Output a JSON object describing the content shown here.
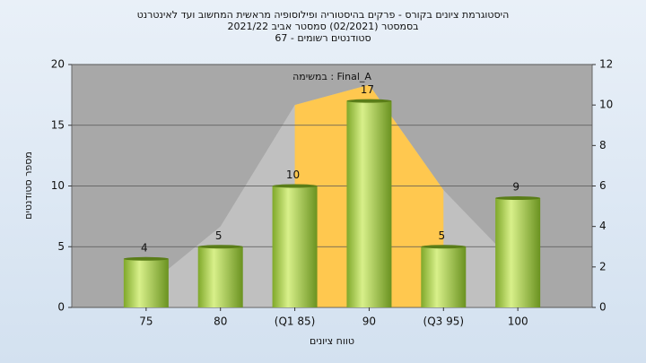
{
  "chart_data": {
    "type": "bar",
    "title": [
      "היסטוגרמת ציונים בקורס - פרקים בהיסטוריה ופילוסופיה מראשית המחשוב ועד לאינטרנט",
      "בסמסטר  (02/2021)  סמסטר אביב 2021/22",
      "סטודנטים רשומים - 67"
    ],
    "annotation": "Final_A : במשימה",
    "y_label": "מספר סטודנטים",
    "x_label": "טווח ציונים",
    "categories": [
      "75",
      "80",
      "(Q1 85)",
      "90",
      "(Q3 95)",
      "100"
    ],
    "values": [
      4,
      5,
      10,
      17,
      5,
      9
    ],
    "color": "#9acd32",
    "ylim": [
      0,
      20
    ],
    "yticks": [
      0,
      5,
      10,
      15,
      20
    ],
    "y2lim": [
      0,
      12
    ],
    "y2ticks": [
      0,
      2,
      4,
      6,
      8,
      10,
      12
    ],
    "areas": [
      {
        "color": "#c0c0c0",
        "axis": "y2",
        "values": [
          1,
          4,
          10,
          11,
          5.8,
          2
        ]
      },
      {
        "color": "#ffc84f",
        "axis": "y2",
        "values": [
          null,
          null,
          10,
          11,
          5.8,
          null
        ]
      }
    ],
    "grid": true
  }
}
